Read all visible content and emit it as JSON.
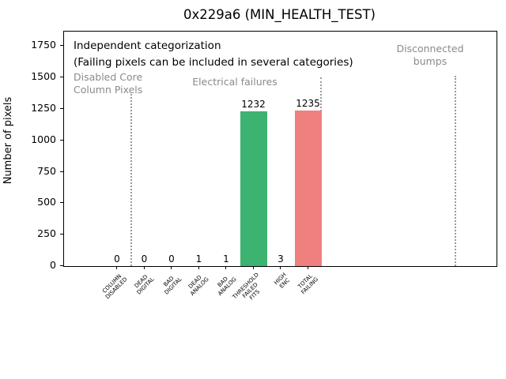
{
  "chart_data": {
    "type": "bar",
    "title": "0x229a6 (MIN_HEALTH_TEST)",
    "ylabel": "Number of pixels",
    "ylim": [
      0,
      1865
    ],
    "yticks": [
      0,
      250,
      500,
      750,
      1000,
      1250,
      1500,
      1750
    ],
    "grid": false,
    "legend": null,
    "categories": [
      [
        "COLUMN",
        "DISABLED"
      ],
      [
        "DEAD",
        "DIGITAL"
      ],
      [
        "BAD",
        "DIGITAL"
      ],
      [
        "DEAD",
        "ANALOG"
      ],
      [
        "BAD",
        "ANALOG"
      ],
      [
        "THRESHOLD",
        "FAILED",
        "FITS"
      ],
      [
        "HIGH",
        "ENC"
      ],
      [
        "TOTAL",
        "FAILING"
      ]
    ],
    "values": [
      0,
      0,
      0,
      1,
      1,
      1232,
      3,
      1235
    ],
    "value_labels": [
      "0",
      "0",
      "0",
      "1",
      "1",
      "1232",
      "3",
      "1235"
    ],
    "bar_colors": [
      null,
      null,
      null,
      null,
      null,
      "#3CB371",
      null,
      "#F08080"
    ],
    "annotations": {
      "line1": "Independent categorization",
      "line2": "(Failing pixels can be included in several categories)"
    },
    "sections": [
      {
        "label_lines": [
          "Disabled Core",
          "Column Pixels"
        ]
      },
      {
        "label_lines": [
          "Electrical failures"
        ]
      },
      {
        "label_lines": [
          "Disconnected",
          "bumps"
        ]
      }
    ]
  },
  "colors": {
    "bar_green": "#3CB371",
    "bar_red": "#F08080",
    "section_text": "#8a8a8a",
    "divider": "#9a9a9a",
    "axis": "#000000",
    "background": "#ffffff"
  }
}
